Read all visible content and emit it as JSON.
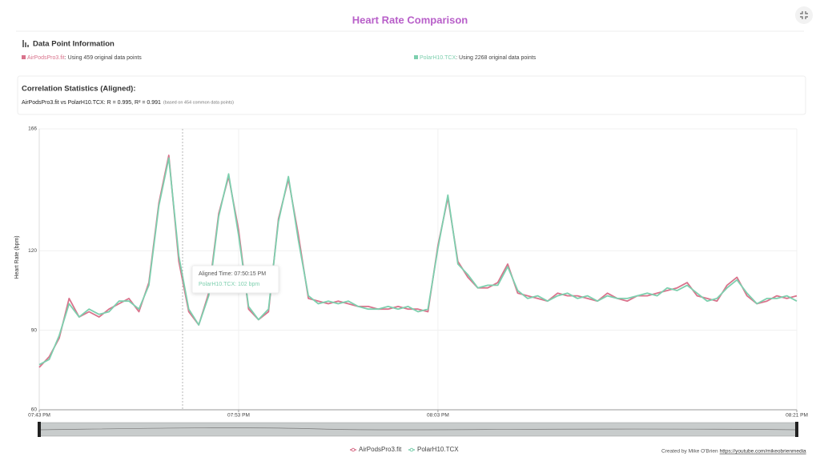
{
  "header": {
    "title": "Heart Rate Comparison"
  },
  "info": {
    "title": "Data Point Information",
    "entries": [
      {
        "name": "AirPodsPro3.fit",
        "text": ": Using 459 original data points"
      },
      {
        "name": "PolarH10.TCX",
        "text": ": Using 2268 original data points"
      }
    ]
  },
  "correlation": {
    "title": "Correlation Statistics (Aligned):",
    "summary": "AirPodsPro3.fit vs PolarH10.TCX: R = 0.995, R² = 0.991",
    "note": "(based on 454 common data points)"
  },
  "tooltip": {
    "time": "Aligned Time: 07:50:15 PM",
    "value": "PolarH10.TCX: 102 bpm"
  },
  "chart_data": {
    "type": "line",
    "ylabel": "Heart Rate (bpm)",
    "x": [
      "07:43:00 PM",
      "07:43:30 PM",
      "07:44:00 PM",
      "07:44:30 PM",
      "07:45:00 PM",
      "07:45:30 PM",
      "07:46:00 PM",
      "07:46:30 PM",
      "07:47:00 PM",
      "07:47:30 PM",
      "07:48:00 PM",
      "07:48:30 PM",
      "07:49:00 PM",
      "07:49:30 PM",
      "07:50:00 PM",
      "07:50:30 PM",
      "07:51:00 PM",
      "07:51:30 PM",
      "07:52:00 PM",
      "07:52:30 PM",
      "07:53:00 PM",
      "07:53:30 PM",
      "07:54:00 PM",
      "07:54:30 PM",
      "07:55:00 PM",
      "07:55:30 PM",
      "07:56:00 PM",
      "07:56:30 PM",
      "07:57:00 PM",
      "07:57:30 PM",
      "07:58:00 PM",
      "07:58:30 PM",
      "07:59:00 PM",
      "07:59:30 PM",
      "08:00:00 PM",
      "08:00:30 PM",
      "08:01:00 PM",
      "08:01:30 PM",
      "08:02:00 PM",
      "08:02:30 PM",
      "08:03:00 PM",
      "08:03:30 PM",
      "08:04:00 PM",
      "08:04:30 PM",
      "08:05:00 PM",
      "08:05:30 PM",
      "08:06:00 PM",
      "08:06:30 PM",
      "08:07:00 PM",
      "08:07:30 PM",
      "08:08:00 PM",
      "08:08:30 PM",
      "08:09:00 PM",
      "08:09:30 PM",
      "08:10:00 PM",
      "08:10:30 PM",
      "08:11:00 PM",
      "08:11:30 PM",
      "08:12:00 PM",
      "08:12:30 PM",
      "08:13:00 PM",
      "08:13:30 PM",
      "08:14:00 PM",
      "08:14:30 PM",
      "08:15:00 PM",
      "08:15:30 PM",
      "08:16:00 PM",
      "08:16:30 PM",
      "08:17:00 PM",
      "08:17:30 PM",
      "08:18:00 PM",
      "08:18:30 PM",
      "08:19:00 PM",
      "08:19:30 PM",
      "08:20:00 PM",
      "08:20:30 PM",
      "08:21:00 PM"
    ],
    "series": [
      {
        "name": "AirPodsPro3.fit",
        "color": "#d9738c",
        "values": [
          76,
          80,
          87,
          102,
          95,
          97,
          95,
          98,
          100,
          102,
          97,
          108,
          138,
          156,
          116,
          97,
          92,
          104,
          134,
          148,
          128,
          98,
          94,
          97,
          132,
          147,
          126,
          102,
          101,
          100,
          101,
          100,
          99,
          99,
          98,
          98,
          99,
          98,
          98,
          97,
          122,
          140,
          116,
          110,
          106,
          106,
          108,
          115,
          104,
          103,
          102,
          101,
          104,
          103,
          103,
          102,
          101,
          104,
          102,
          101,
          103,
          103,
          104,
          105,
          106,
          108,
          103,
          102,
          101,
          107,
          110,
          103,
          100,
          101,
          103,
          102,
          103
        ]
      },
      {
        "name": "PolarH10.TCX",
        "color": "#7dcfae",
        "values": [
          77,
          79,
          88,
          100,
          95,
          98,
          96,
          97,
          101,
          101,
          98,
          107,
          137,
          155,
          118,
          98,
          92,
          103,
          133,
          149,
          126,
          99,
          94,
          98,
          131,
          148,
          124,
          103,
          100,
          101,
          100,
          101,
          99,
          98,
          98,
          99,
          98,
          99,
          97,
          98,
          121,
          141,
          115,
          111,
          106,
          107,
          107,
          114,
          105,
          102,
          103,
          101,
          103,
          104,
          102,
          103,
          101,
          103,
          102,
          102,
          103,
          104,
          103,
          106,
          105,
          107,
          104,
          101,
          102,
          106,
          109,
          104,
          100,
          102,
          102,
          103,
          101
        ]
      }
    ],
    "xlim": [
      "07:43 PM",
      "08:21 PM"
    ],
    "xticks": [
      "07:43 PM",
      "07:53 PM",
      "08:03 PM",
      "08:21 PM"
    ],
    "ylim": [
      60,
      166
    ],
    "yticks": [
      60,
      90,
      120,
      166
    ],
    "grid": true
  },
  "footer": {
    "credit": "Created by Mike O'Brien",
    "link": "https://youtube.com/mikeobrienmedia"
  }
}
